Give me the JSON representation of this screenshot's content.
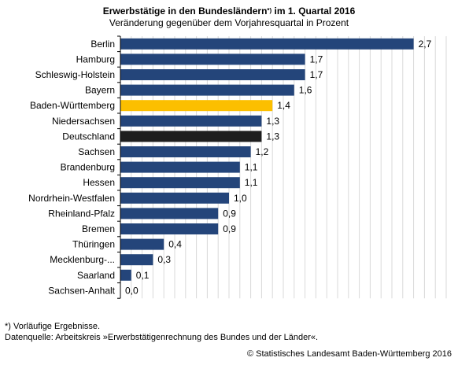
{
  "chart_data": {
    "type": "bar",
    "orientation": "horizontal",
    "title": "Erwerbstätige in den Bundesländern",
    "title_superscript": "*)",
    "title_suffix": "im 1. Quartal 2016",
    "subtitle": "Veränderung gegenüber dem Vorjahresquartal in Prozent",
    "categories": [
      "Berlin",
      "Hamburg",
      "Schleswig-Holstein",
      "Bayern",
      "Baden-Württemberg",
      "Niedersachsen",
      "Deutschland",
      "Sachsen",
      "Brandenburg",
      "Hessen",
      "Nordrhein-Westfalen",
      "Rheinland-Pfalz",
      "Bremen",
      "Thüringen",
      "Mecklenburg-...",
      "Saarland",
      "Sachsen-Anhalt"
    ],
    "values": [
      2.7,
      1.7,
      1.7,
      1.6,
      1.4,
      1.3,
      1.3,
      1.2,
      1.1,
      1.1,
      1.0,
      0.9,
      0.9,
      0.4,
      0.3,
      0.1,
      0.0
    ],
    "value_labels": [
      "2,7",
      "1,7",
      "1,7",
      "1,6",
      "1,4",
      "1,3",
      "1,3",
      "1,2",
      "1,1",
      "1,1",
      "1,0",
      "0,9",
      "0,9",
      "0,4",
      "0,3",
      "0,1",
      "0,0"
    ],
    "bar_colors": [
      "#24457a",
      "#24457a",
      "#24457a",
      "#24457a",
      "#fcbf00",
      "#24457a",
      "#1e1e1e",
      "#24457a",
      "#24457a",
      "#24457a",
      "#24457a",
      "#24457a",
      "#24457a",
      "#24457a",
      "#24457a",
      "#24457a",
      "#24457a"
    ],
    "xlim": [
      0,
      3.0
    ],
    "grid": true,
    "grid_step": 0.1,
    "grid_color": "#d9d9d9"
  },
  "footnotes": [
    "*) Vorläufige Ergebnisse.",
    "Datenquelle: Arbeitskreis »Erwerbstätigenrechnung des Bundes und der Länder«."
  ],
  "copyright": "© Statistisches Landesamt Baden-Württemberg 2016"
}
